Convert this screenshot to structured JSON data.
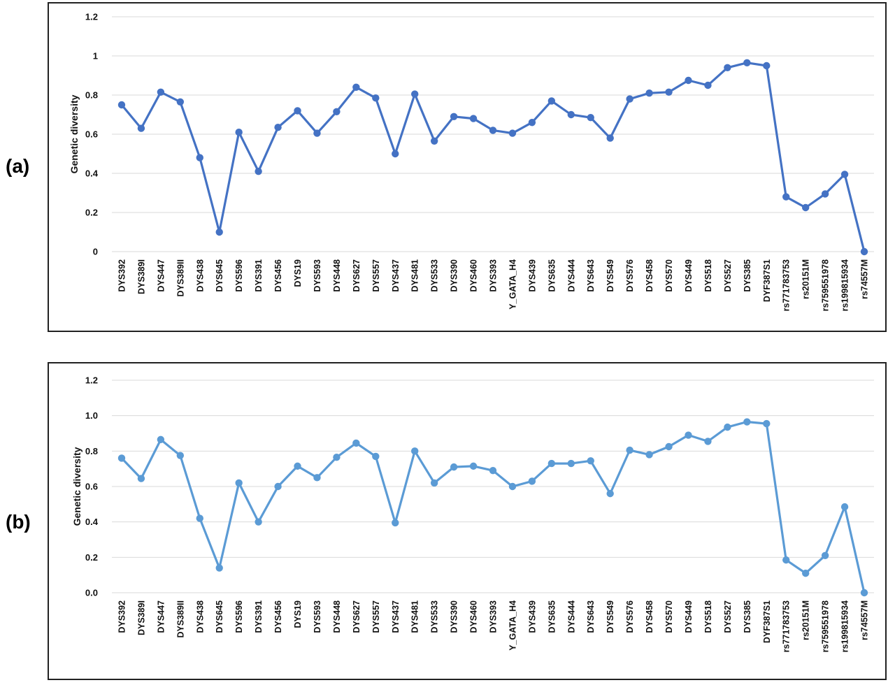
{
  "panel_labels": [
    "(a)",
    "(b)"
  ],
  "chart_data": [
    {
      "type": "line",
      "xlabel": "",
      "ylabel": "Genetic diversity",
      "ylim": [
        0,
        1.2
      ],
      "yticks": [
        "0",
        "0.2",
        "0.4",
        "0.6",
        "0.8",
        "1",
        "1.2"
      ],
      "grid": true,
      "color": "#4472C4",
      "categories": [
        "DYS392",
        "DYS389I",
        "DYS447",
        "DYS389II",
        "DYS438",
        "DYS645",
        "DYS596",
        "DYS391",
        "DYS456",
        "DYS19",
        "DYS593",
        "DYS448",
        "DYS627",
        "DYS557",
        "DYS437",
        "DYS481",
        "DYS533",
        "DYS390",
        "DYS460",
        "DYS393",
        "Y_GATA_H4",
        "DYS439",
        "DYS635",
        "DYS444",
        "DYS643",
        "DYS549",
        "DYS576",
        "DYS458",
        "DYS570",
        "DYS449",
        "DYS518",
        "DYS527",
        "DYS385",
        "DYF387S1",
        "rs771783753",
        "rs20151M",
        "rs759551978",
        "rs199815934",
        "rs74557M"
      ],
      "values": [
        0.75,
        0.63,
        0.815,
        0.765,
        0.48,
        0.1,
        0.61,
        0.41,
        0.635,
        0.72,
        0.605,
        0.715,
        0.84,
        0.785,
        0.5,
        0.805,
        0.565,
        0.69,
        0.68,
        0.62,
        0.605,
        0.66,
        0.77,
        0.7,
        0.685,
        0.58,
        0.78,
        0.81,
        0.815,
        0.875,
        0.85,
        0.94,
        0.965,
        0.95,
        0.28,
        0.225,
        0.295,
        0.395,
        0.0
      ]
    },
    {
      "type": "line",
      "xlabel": "",
      "ylabel": "Genetic diversity",
      "ylim": [
        0,
        1.2
      ],
      "yticks": [
        "0.0",
        "0.2",
        "0.4",
        "0.6",
        "0.8",
        "1.0",
        "1.2"
      ],
      "grid": true,
      "color": "#5B9BD5",
      "categories": [
        "DYS392",
        "DYS389I",
        "DYS447",
        "DYS389II",
        "DYS438",
        "DYS645",
        "DYS596",
        "DYS391",
        "DYS456",
        "DYS19",
        "DYS593",
        "DYS448",
        "DYS627",
        "DYS557",
        "DYS437",
        "DYS481",
        "DYS533",
        "DYS390",
        "DYS460",
        "DYS393",
        "Y_GATA_H4",
        "DYS439",
        "DYS635",
        "DYS444",
        "DYS643",
        "DYS549",
        "DYS576",
        "DYS458",
        "DYS570",
        "DYS449",
        "DYS518",
        "DYS527",
        "DYS385",
        "DYF387S1",
        "rs771783753",
        "rs20151M",
        "rs759551978",
        "rs199815934",
        "rs74557M"
      ],
      "values": [
        0.76,
        0.645,
        0.865,
        0.775,
        0.42,
        0.14,
        0.62,
        0.4,
        0.6,
        0.715,
        0.65,
        0.765,
        0.845,
        0.77,
        0.395,
        0.8,
        0.62,
        0.71,
        0.715,
        0.69,
        0.6,
        0.63,
        0.73,
        0.73,
        0.745,
        0.56,
        0.805,
        0.78,
        0.825,
        0.89,
        0.855,
        0.935,
        0.965,
        0.955,
        0.185,
        0.11,
        0.21,
        0.485,
        0.0
      ]
    }
  ]
}
